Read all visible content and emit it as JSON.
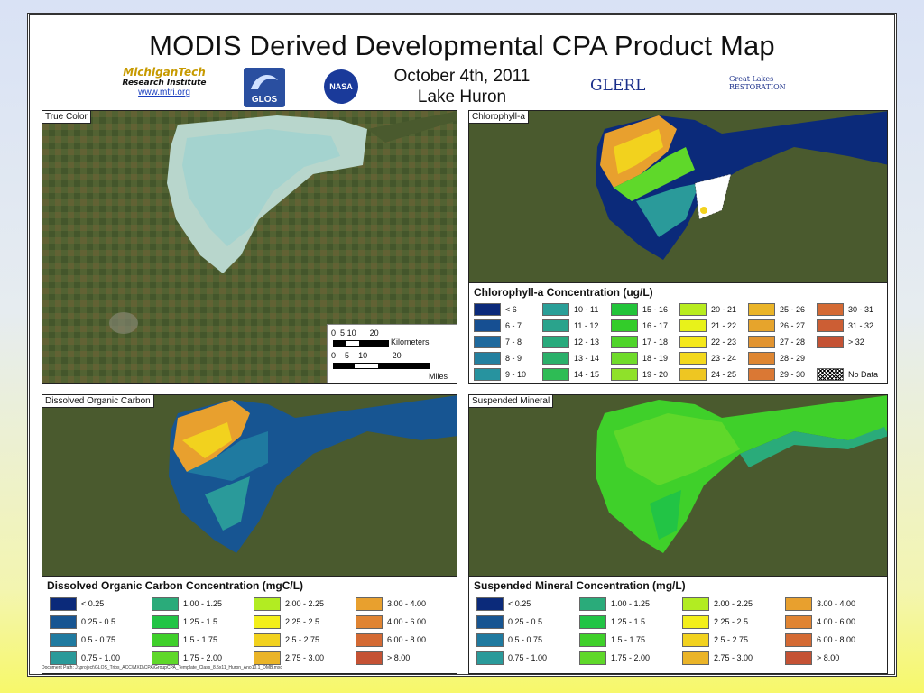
{
  "title": "MODIS Derived Developmental CPA Product Map",
  "date": "October 4th, 2011",
  "lake": "Lake Huron",
  "logos": {
    "mtu_name": "MichiganTech",
    "mtu_sub": "Research Institute",
    "mtu_url": "www.mtri.org",
    "glos": "GLOS",
    "nasa": "NASA",
    "glerl": "GLERL",
    "glri_line1": "Great Lakes",
    "glri_line2": "RESTORATION"
  },
  "panels": {
    "true_color": "True Color",
    "chlorophyll": "Chlorophyll-a",
    "doc": "Dissolved Organic Carbon",
    "suspended": "Suspended Mineral"
  },
  "scalebar": {
    "km_ticks": [
      "0",
      "5",
      "10",
      "20"
    ],
    "km_unit": "Kilometers",
    "mi_ticks": [
      "0",
      "5",
      "10",
      "20"
    ],
    "mi_unit": "Miles"
  },
  "legends": {
    "chlorophyll": {
      "title": "Chlorophyll-a Concentration (ug/L)",
      "items": [
        {
          "label": "< 6",
          "color": "#0b2a7a"
        },
        {
          "label": "6 - 7",
          "color": "#164f92"
        },
        {
          "label": "7 - 8",
          "color": "#1f6a9e"
        },
        {
          "label": "8 - 9",
          "color": "#23809f"
        },
        {
          "label": "9 - 10",
          "color": "#27939f"
        },
        {
          "label": "10 - 11",
          "color": "#2a9f98"
        },
        {
          "label": "11 - 12",
          "color": "#2aa38c"
        },
        {
          "label": "12 - 13",
          "color": "#28aa7c"
        },
        {
          "label": "13 - 14",
          "color": "#2ab06a"
        },
        {
          "label": "14 - 15",
          "color": "#2ebc55"
        },
        {
          "label": "15 - 16",
          "color": "#22c43a"
        },
        {
          "label": "16 - 17",
          "color": "#33cc2a"
        },
        {
          "label": "17 - 18",
          "color": "#4fd42a"
        },
        {
          "label": "18 - 19",
          "color": "#6fdb2a"
        },
        {
          "label": "19 - 20",
          "color": "#8fe12a"
        },
        {
          "label": "20 - 21",
          "color": "#b8ec1f"
        },
        {
          "label": "21 - 22",
          "color": "#e8f21a"
        },
        {
          "label": "22 - 23",
          "color": "#f5e81a"
        },
        {
          "label": "23 - 24",
          "color": "#f3d81c"
        },
        {
          "label": "24 - 25",
          "color": "#eec622"
        },
        {
          "label": "25 - 26",
          "color": "#eab428"
        },
        {
          "label": "26 - 27",
          "color": "#e6a42c"
        },
        {
          "label": "27 - 28",
          "color": "#e29430"
        },
        {
          "label": "28 - 29",
          "color": "#de8632"
        },
        {
          "label": "29 - 30",
          "color": "#da7834"
        },
        {
          "label": "30 - 31",
          "color": "#d46a34"
        },
        {
          "label": "31 - 32",
          "color": "#cc5e34"
        },
        {
          "label": "> 32",
          "color": "#c45234"
        },
        {
          "label": "",
          "color": ""
        },
        {
          "label": "No Data",
          "color": "nodata"
        }
      ]
    },
    "doc": {
      "title": "Dissolved Organic Carbon Concentration (mgC/L)",
      "items": [
        {
          "label": "< 0.25",
          "color": "#0b2a7a"
        },
        {
          "label": "0.25 - 0.5",
          "color": "#175592"
        },
        {
          "label": "0.5 - 0.75",
          "color": "#1f7aa0"
        },
        {
          "label": "0.75 - 1.00",
          "color": "#2a9a9a"
        },
        {
          "label": "1.00 - 1.25",
          "color": "#2aab7a"
        },
        {
          "label": "1.25 - 1.5",
          "color": "#22c445"
        },
        {
          "label": "1.5 - 1.75",
          "color": "#3fd02a"
        },
        {
          "label": "1.75 - 2.00",
          "color": "#5fd82a"
        },
        {
          "label": "2.00 - 2.25",
          "color": "#b2ec22"
        },
        {
          "label": "2.25 - 2.5",
          "color": "#f3ef1a"
        },
        {
          "label": "2.5 - 2.75",
          "color": "#f2d21e"
        },
        {
          "label": "2.75 - 3.00",
          "color": "#eab428"
        },
        {
          "label": "3.00 - 4.00",
          "color": "#e8a02e"
        },
        {
          "label": "4.00 - 6.00",
          "color": "#e08432"
        },
        {
          "label": "6.00 - 8.00",
          "color": "#d46a34"
        },
        {
          "label": "> 8.00",
          "color": "#c45234"
        }
      ]
    },
    "suspended": {
      "title": "Suspended Mineral Concentration (mg/L)",
      "items": [
        {
          "label": "< 0.25",
          "color": "#0b2a7a"
        },
        {
          "label": "0.25 - 0.5",
          "color": "#175592"
        },
        {
          "label": "0.5 - 0.75",
          "color": "#1f7aa0"
        },
        {
          "label": "0.75 - 1.00",
          "color": "#2a9a9a"
        },
        {
          "label": "1.00 - 1.25",
          "color": "#2aab7a"
        },
        {
          "label": "1.25 - 1.5",
          "color": "#22c445"
        },
        {
          "label": "1.5 - 1.75",
          "color": "#3fd02a"
        },
        {
          "label": "1.75 - 2.00",
          "color": "#5fd82a"
        },
        {
          "label": "2.00 - 2.25",
          "color": "#b2ec22"
        },
        {
          "label": "2.25 - 2.5",
          "color": "#f3ef1a"
        },
        {
          "label": "2.5 - 2.75",
          "color": "#f2d21e"
        },
        {
          "label": "2.75 - 3.00",
          "color": "#eab428"
        },
        {
          "label": "3.00 - 4.00",
          "color": "#e8a02e"
        },
        {
          "label": "4.00 - 6.00",
          "color": "#e08432"
        },
        {
          "label": "6.00 - 8.00",
          "color": "#d46a34"
        },
        {
          "label": "> 8.00",
          "color": "#c45234"
        }
      ]
    }
  },
  "doc_path": "Document Path: J:\\project\\GLOS_Tribs_ACC\\MXD\\CPA\\GroupCPA_Template_Class_8.5x11_Huron_Ano10.1_DMB.mxd"
}
